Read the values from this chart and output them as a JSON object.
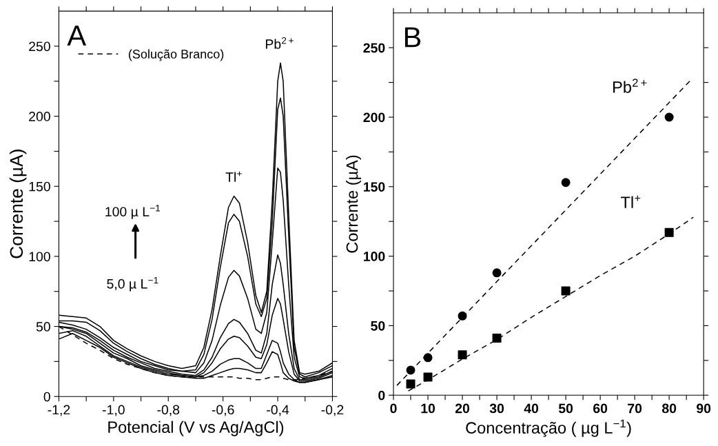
{
  "chart_data": [
    {
      "type": "line",
      "xlabel": "Potencial (V vs Ag/AgCl)",
      "ylabel": "Corrente (µA)",
      "legend": "top left",
      "x": [
        -1.2,
        -1.15,
        -1.1,
        -1.05,
        -1.0,
        -0.95,
        -0.9,
        -0.85,
        -0.8,
        -0.75,
        -0.7,
        -0.67,
        -0.64,
        -0.61,
        -0.58,
        -0.56,
        -0.54,
        -0.51,
        -0.48,
        -0.46,
        -0.44,
        -0.42,
        -0.4,
        -0.39,
        -0.38,
        -0.36,
        -0.34,
        -0.32,
        -0.3,
        -0.25,
        -0.2
      ],
      "series": [
        {
          "color": "#000000",
          "line_style": "solid",
          "values": [
            58,
            57,
            56,
            50,
            40,
            34,
            29,
            25,
            22,
            20,
            22,
            35,
            62,
            100,
            135,
            143,
            138,
            110,
            72,
            60,
            75,
            140,
            225,
            238,
            225,
            130,
            40,
            17,
            16,
            18,
            24
          ]
        },
        {
          "color": "#000000",
          "line_style": "solid",
          "values": [
            54,
            54,
            53,
            47,
            38,
            32,
            27,
            23,
            20,
            18,
            19,
            30,
            55,
            92,
            124,
            130,
            125,
            100,
            66,
            57,
            70,
            125,
            205,
            213,
            200,
            115,
            35,
            16,
            14,
            17,
            22
          ]
        },
        {
          "color": "#000000",
          "line_style": "solid",
          "values": [
            53,
            51,
            48,
            42,
            35,
            30,
            25,
            22,
            19,
            18,
            17,
            24,
            40,
            65,
            85,
            90,
            86,
            70,
            48,
            45,
            60,
            110,
            163,
            160,
            140,
            80,
            28,
            14,
            13,
            15,
            20
          ]
        },
        {
          "color": "#000000",
          "line_style": "solid",
          "values": [
            50,
            49,
            46,
            40,
            33,
            28,
            24,
            20,
            18,
            16,
            15,
            19,
            28,
            42,
            52,
            55,
            53,
            45,
            33,
            31,
            45,
            80,
            101,
            95,
            80,
            45,
            20,
            12,
            12,
            14,
            18
          ]
        },
        {
          "color": "#000000",
          "line_style": "solid",
          "values": [
            50,
            48,
            45,
            38,
            31,
            27,
            22,
            19,
            17,
            15,
            14,
            17,
            24,
            34,
            41,
            43,
            42,
            36,
            28,
            27,
            37,
            58,
            70,
            66,
            55,
            32,
            16,
            11,
            11,
            13,
            17
          ]
        },
        {
          "color": "#000000",
          "line_style": "solid",
          "values": [
            45,
            47,
            43,
            36,
            29,
            25,
            21,
            18,
            16,
            15,
            14,
            15,
            18,
            23,
            26,
            27,
            27,
            24,
            20,
            20,
            30,
            40,
            38,
            32,
            24,
            16,
            12,
            10,
            10,
            12,
            15
          ]
        },
        {
          "color": "#000000",
          "line_style": "solid",
          "values": [
            41,
            45,
            40,
            35,
            28,
            24,
            20,
            17,
            15,
            14,
            13,
            13,
            15,
            17,
            19,
            20,
            20,
            19,
            17,
            17,
            24,
            32,
            30,
            24,
            17,
            13,
            11,
            10,
            10,
            12,
            14
          ]
        },
        {
          "name": "(Solução Branco)",
          "color": "#000000",
          "line_style": "dashed",
          "values": [
            50,
            44,
            38,
            33,
            27,
            23,
            20,
            17,
            15,
            14,
            14,
            14,
            14,
            14,
            14,
            14,
            13,
            13,
            12,
            12,
            13,
            14,
            14,
            14,
            13,
            12,
            12,
            12,
            13,
            15,
            18
          ]
        }
      ],
      "xlim": [
        -1.2,
        -0.2
      ],
      "xticks": [
        {
          "value": -1.2,
          "label": "-1,2"
        },
        {
          "value": -1.1,
          "label": null
        },
        {
          "value": -1.0,
          "label": "-1,0"
        },
        {
          "value": -0.9,
          "label": null
        },
        {
          "value": -0.8,
          "label": "-0,8"
        },
        {
          "value": -0.7,
          "label": null
        },
        {
          "value": -0.6,
          "label": "-0,6"
        },
        {
          "value": -0.5,
          "label": null
        },
        {
          "value": -0.4,
          "label": "-0,4"
        },
        {
          "value": -0.3,
          "label": null
        },
        {
          "value": -0.2,
          "label": "-0,2"
        }
      ],
      "ylim": [
        0,
        275
      ],
      "yticks": [
        0,
        {
          "value": 25,
          "label": null
        },
        50,
        {
          "value": 75,
          "label": null
        },
        100,
        {
          "value": 125,
          "label": null
        },
        150,
        {
          "value": 175,
          "label": null
        },
        200,
        {
          "value": 225,
          "label": null
        },
        250
      ],
      "annotations": [
        "A",
        {
          "text": "Tl$^{+}$",
          "x": -0.56,
          "y": 143
        },
        {
          "text": "Pb$^{2+}$",
          "x": -0.39,
          "y": 238
        },
        "100 µ L$^{−1}$",
        "5,0 µ L$^{−1}$"
      ]
    },
    {
      "type": "scatter",
      "xlabel": "Concentração ( µg L$^{−1}$)",
      "ylabel": "Corrente (µA)",
      "series": [
        {
          "name": "Pb$^{2+}$",
          "color": "#000000",
          "marker": "circle",
          "x": [
            5,
            10,
            20,
            30,
            50,
            80
          ],
          "values": [
            18,
            27,
            57,
            88,
            153,
            200
          ]
        },
        {
          "name": "Tl$^{+}$",
          "color": "#000000",
          "marker": "square",
          "x": [
            5,
            10,
            20,
            30,
            50,
            80
          ],
          "values": [
            8,
            13,
            29,
            41,
            75,
            117
          ]
        },
        {
          "type": "line",
          "color": "#000000",
          "line_style": "dashed",
          "x": [
            1,
            86
          ],
          "values": [
            7,
            226
          ]
        },
        {
          "type": "line",
          "color": "#000000",
          "line_style": "dashed",
          "x": [
            4.3,
            10,
            20,
            30,
            40,
            50,
            60,
            70,
            80,
            87
          ],
          "values": [
            3,
            11,
            26,
            40,
            56,
            71,
            86,
            100,
            116,
            128
          ]
        }
      ],
      "xlim": [
        0,
        90
      ],
      "xticks": [
        0,
        {
          "value": 5,
          "label": null
        },
        10,
        {
          "value": 15,
          "label": null
        },
        20,
        {
          "value": 25,
          "label": null
        },
        30,
        {
          "value": 35,
          "label": null
        },
        40,
        {
          "value": 45,
          "label": null
        },
        50,
        {
          "value": 55,
          "label": null
        },
        60,
        {
          "value": 65,
          "label": null
        },
        70,
        {
          "value": 75,
          "label": null
        },
        80,
        {
          "value": 85,
          "label": null
        },
        90
      ],
      "ylim": [
        0,
        275
      ],
      "yticks": [
        0,
        {
          "value": 25,
          "label": null
        },
        50,
        {
          "value": 75,
          "label": null
        },
        100,
        {
          "value": 125,
          "label": null
        },
        150,
        {
          "value": 175,
          "label": null
        },
        200,
        {
          "value": 225,
          "label": null
        },
        250
      ],
      "annotations": [
        "B"
      ]
    }
  ]
}
